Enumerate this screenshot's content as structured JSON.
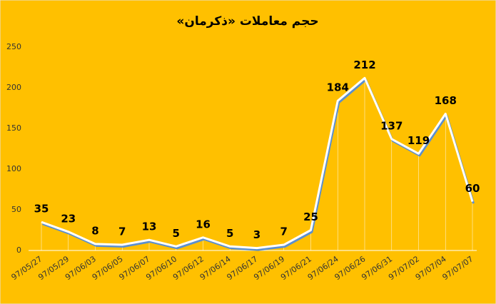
{
  "chart_data": {
    "type": "line",
    "title": "حجم معاملات «ذکرمان»",
    "categories": [
      "97/05/27",
      "97/05/29",
      "97/06/03",
      "97/06/05",
      "97/06/07",
      "97/06/10",
      "97/06/12",
      "97/06/14",
      "97/06/17",
      "97/06/19",
      "97/06/21",
      "97/06/24",
      "97/06/26",
      "97/06/31",
      "97/07/02",
      "97/07/04",
      "97/07/07"
    ],
    "values": [
      35,
      23,
      8,
      7,
      13,
      5,
      16,
      5,
      3,
      7,
      25,
      184,
      212,
      137,
      119,
      168,
      60
    ],
    "color": "#ffffff",
    "ylim": [
      0,
      250
    ],
    "yticks": [
      0,
      50,
      100,
      150,
      200,
      250
    ]
  }
}
